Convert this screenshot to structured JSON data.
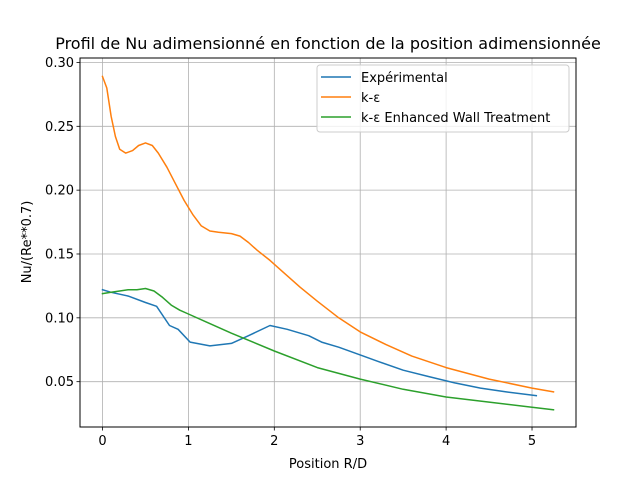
{
  "chart_data": {
    "type": "line",
    "title": "Profil de Nu adimensionné en fonction de la position adimensionnée",
    "xlabel": "Position R/D",
    "ylabel": "Nu/(Re**0.7)",
    "xlim": [
      -0.262,
      5.512
    ],
    "ylim": [
      0.0145,
      0.3035
    ],
    "xticks": [
      0,
      1,
      2,
      3,
      4,
      5
    ],
    "yticks": [
      0.05,
      0.1,
      0.15,
      0.2,
      0.25,
      0.3
    ],
    "xtick_labels": [
      "0",
      "1",
      "2",
      "3",
      "4",
      "5"
    ],
    "ytick_labels": [
      "0.05",
      "0.10",
      "0.15",
      "0.20",
      "0.25",
      "0.30"
    ],
    "grid": true,
    "legend_position": "upper right",
    "series": [
      {
        "name": "Expérimental",
        "color": "#1f77b4",
        "x": [
          0,
          0.1,
          0.3,
          0.5,
          0.63,
          0.78,
          0.88,
          1.02,
          1.25,
          1.5,
          1.7,
          1.95,
          2.15,
          2.4,
          2.55,
          2.75,
          3.0,
          3.2,
          3.5,
          3.8,
          4.1,
          4.4,
          4.7,
          5.05
        ],
        "y": [
          0.122,
          0.12,
          0.117,
          0.112,
          0.109,
          0.094,
          0.091,
          0.081,
          0.078,
          0.08,
          0.086,
          0.094,
          0.091,
          0.086,
          0.081,
          0.077,
          0.071,
          0.066,
          0.059,
          0.054,
          0.049,
          0.045,
          0.042,
          0.039
        ]
      },
      {
        "name": "k-ε",
        "color": "#ff7f0e",
        "x": [
          0,
          0.05,
          0.1,
          0.15,
          0.2,
          0.27,
          0.35,
          0.42,
          0.5,
          0.58,
          0.65,
          0.75,
          0.85,
          0.95,
          1.05,
          1.15,
          1.25,
          1.35,
          1.5,
          1.6,
          1.7,
          1.8,
          1.95,
          2.1,
          2.3,
          2.5,
          2.75,
          3.0,
          3.3,
          3.6,
          4.0,
          4.5,
          5.0,
          5.25
        ],
        "y": [
          0.289,
          0.28,
          0.258,
          0.242,
          0.232,
          0.229,
          0.231,
          0.235,
          0.237,
          0.235,
          0.229,
          0.218,
          0.205,
          0.192,
          0.181,
          0.172,
          0.168,
          0.167,
          0.166,
          0.164,
          0.159,
          0.153,
          0.145,
          0.136,
          0.124,
          0.113,
          0.1,
          0.089,
          0.079,
          0.07,
          0.061,
          0.052,
          0.045,
          0.042
        ]
      },
      {
        "name": "k-ε Enhanced Wall Treatment",
        "color": "#2ca02c",
        "x": [
          0,
          0.1,
          0.2,
          0.3,
          0.4,
          0.5,
          0.6,
          0.7,
          0.8,
          0.9,
          1.0,
          1.2,
          1.5,
          2.0,
          2.5,
          3.0,
          3.5,
          4.0,
          4.5,
          5.0,
          5.25
        ],
        "y": [
          0.119,
          0.12,
          0.121,
          0.122,
          0.122,
          0.123,
          0.121,
          0.116,
          0.11,
          0.106,
          0.103,
          0.097,
          0.088,
          0.074,
          0.061,
          0.052,
          0.044,
          0.038,
          0.034,
          0.03,
          0.028
        ]
      }
    ]
  }
}
